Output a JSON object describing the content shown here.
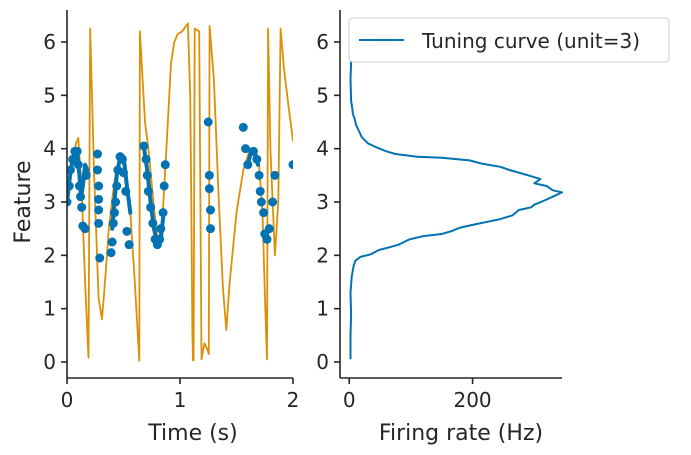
{
  "colors": {
    "blue": "#0173b2",
    "orange": "#de8f05",
    "axis": "#262626"
  },
  "chart_data": [
    {
      "type": "scatter",
      "xlabel": "Time (s)",
      "ylabel": "Feature",
      "xlim": [
        0,
        2
      ],
      "ylim": [
        -0.3,
        6.6
      ],
      "xticks": [
        "0",
        "1",
        "2"
      ],
      "yticks": [
        "0",
        "1",
        "2",
        "3",
        "4",
        "5",
        "6"
      ],
      "grid": false,
      "series": [
        {
          "kind": "line",
          "color": "#de8f05",
          "points": [
            [
              0.0,
              3.0
            ],
            [
              0.04,
              3.6
            ],
            [
              0.08,
              4.1
            ],
            [
              0.1,
              4.2
            ],
            [
              0.13,
              3.2
            ],
            [
              0.16,
              1.5
            ],
            [
              0.19,
              0.08
            ],
            [
              0.205,
              6.25
            ],
            [
              0.24,
              3.5
            ],
            [
              0.28,
              1.2
            ],
            [
              0.31,
              0.8
            ],
            [
              0.34,
              1.6
            ],
            [
              0.37,
              2.5
            ],
            [
              0.42,
              3.4
            ],
            [
              0.47,
              3.85
            ],
            [
              0.52,
              3.7
            ],
            [
              0.56,
              2.8
            ],
            [
              0.6,
              1.5
            ],
            [
              0.64,
              0.02
            ],
            [
              0.645,
              6.2
            ],
            [
              0.69,
              4.5
            ],
            [
              0.72,
              4.0
            ],
            [
              0.76,
              3.1
            ],
            [
              0.8,
              2.3
            ],
            [
              0.84,
              2.5
            ],
            [
              0.88,
              4.0
            ],
            [
              0.92,
              5.6
            ],
            [
              0.95,
              6.0
            ],
            [
              0.98,
              6.15
            ],
            [
              1.02,
              6.2
            ],
            [
              1.07,
              6.35
            ],
            [
              1.09,
              5.0
            ],
            [
              1.1,
              3.0
            ],
            [
              1.11,
              0.5
            ],
            [
              1.115,
              0.03
            ],
            [
              1.12,
              0.03
            ],
            [
              1.13,
              6.25
            ],
            [
              1.17,
              6.2
            ],
            [
              1.19,
              0.05
            ],
            [
              1.215,
              0.35
            ],
            [
              1.24,
              0.25
            ],
            [
              1.255,
              0.15
            ],
            [
              1.262,
              6.3
            ],
            [
              1.3,
              5.3
            ],
            [
              1.34,
              3.2
            ],
            [
              1.38,
              1.4
            ],
            [
              1.41,
              0.6
            ],
            [
              1.44,
              1.5
            ],
            [
              1.5,
              2.8
            ],
            [
              1.56,
              3.6
            ],
            [
              1.62,
              4.0
            ],
            [
              1.66,
              4.0
            ],
            [
              1.7,
              3.7
            ],
            [
              1.73,
              2.8
            ],
            [
              1.755,
              1.0
            ],
            [
              1.77,
              0.05
            ],
            [
              1.78,
              6.25
            ],
            [
              1.8,
              4.0
            ],
            [
              1.84,
              2.0
            ],
            [
              1.87,
              3.0
            ],
            [
              1.89,
              6.25
            ],
            [
              1.92,
              5.5
            ],
            [
              1.96,
              4.8
            ],
            [
              2.0,
              4.15
            ]
          ]
        },
        {
          "kind": "line",
          "color": "#0173b2",
          "points": [
            [
              0.0,
              3.0
            ],
            [
              0.03,
              3.55
            ],
            [
              0.06,
              3.9
            ],
            [
              0.09,
              3.95
            ],
            [
              0.11,
              3.5
            ],
            [
              0.125,
              3.1
            ],
            [
              0.14,
              3.3
            ],
            [
              0.16,
              3.7
            ],
            [
              0.18,
              3.6
            ]
          ]
        },
        {
          "kind": "line",
          "color": "#0173b2",
          "points": [
            [
              0.4,
              2.5
            ],
            [
              0.42,
              3.0
            ],
            [
              0.44,
              3.5
            ],
            [
              0.47,
              3.85
            ],
            [
              0.5,
              3.85
            ],
            [
              0.53,
              3.3
            ],
            [
              0.56,
              2.8
            ]
          ]
        },
        {
          "kind": "line",
          "color": "#0173b2",
          "points": [
            [
              0.68,
              4.05
            ],
            [
              0.71,
              3.6
            ],
            [
              0.74,
              3.0
            ],
            [
              0.77,
              2.5
            ],
            [
              0.8,
              2.2
            ],
            [
              0.83,
              2.3
            ],
            [
              0.85,
              2.7
            ]
          ]
        },
        {
          "kind": "line",
          "color": "#0173b2",
          "points": [
            [
              1.6,
              3.7
            ],
            [
              1.63,
              3.95
            ],
            [
              1.66,
              3.95
            ],
            [
              1.69,
              3.7
            ]
          ]
        },
        {
          "kind": "scatter",
          "color": "#0173b2",
          "points": [
            [
              0.0,
              3.0
            ],
            [
              0.02,
              3.3
            ],
            [
              0.03,
              3.6
            ],
            [
              0.05,
              3.8
            ],
            [
              0.07,
              3.95
            ],
            [
              0.09,
              3.95
            ],
            [
              0.1,
              3.7
            ],
            [
              0.11,
              3.3
            ],
            [
              0.12,
              3.1
            ],
            [
              0.13,
              2.9
            ],
            [
              0.14,
              2.55
            ],
            [
              0.16,
              2.5
            ],
            [
              0.17,
              3.5
            ],
            [
              0.27,
              3.9
            ],
            [
              0.27,
              3.6
            ],
            [
              0.28,
              3.3
            ],
            [
              0.28,
              3.05
            ],
            [
              0.28,
              2.85
            ],
            [
              0.28,
              2.6
            ],
            [
              0.29,
              1.95
            ],
            [
              0.39,
              2.05
            ],
            [
              0.4,
              2.25
            ],
            [
              0.41,
              2.6
            ],
            [
              0.42,
              2.8
            ],
            [
              0.43,
              3.0
            ],
            [
              0.44,
              3.3
            ],
            [
              0.45,
              3.6
            ],
            [
              0.47,
              3.85
            ],
            [
              0.49,
              3.8
            ],
            [
              0.5,
              3.55
            ],
            [
              0.52,
              3.2
            ],
            [
              0.53,
              2.45
            ],
            [
              0.55,
              2.2
            ],
            [
              0.68,
              4.05
            ],
            [
              0.7,
              3.8
            ],
            [
              0.71,
              3.5
            ],
            [
              0.72,
              3.2
            ],
            [
              0.74,
              2.9
            ],
            [
              0.76,
              2.6
            ],
            [
              0.78,
              2.3
            ],
            [
              0.8,
              2.2
            ],
            [
              0.82,
              2.3
            ],
            [
              0.83,
              2.5
            ],
            [
              0.85,
              2.8
            ],
            [
              0.86,
              3.3
            ],
            [
              0.87,
              3.7
            ],
            [
              1.25,
              4.5
            ],
            [
              1.26,
              3.5
            ],
            [
              1.26,
              3.25
            ],
            [
              1.27,
              2.85
            ],
            [
              1.27,
              2.5
            ],
            [
              1.56,
              4.4
            ],
            [
              1.58,
              4.0
            ],
            [
              1.6,
              3.7
            ],
            [
              1.65,
              3.95
            ],
            [
              1.68,
              3.8
            ],
            [
              1.7,
              3.5
            ],
            [
              1.71,
              3.2
            ],
            [
              1.72,
              3.0
            ],
            [
              1.74,
              2.8
            ],
            [
              1.75,
              2.4
            ],
            [
              1.77,
              2.3
            ],
            [
              1.79,
              2.5
            ],
            [
              1.82,
              3.0
            ],
            [
              1.84,
              3.5
            ],
            [
              2.0,
              3.7
            ]
          ]
        }
      ]
    },
    {
      "type": "line",
      "xlabel": "Firing rate (Hz)",
      "ylabel": "",
      "xlim": [
        -15,
        345
      ],
      "ylim": [
        -0.3,
        6.6
      ],
      "xticks": [
        "0",
        "200"
      ],
      "yticks": [
        "0",
        "1",
        "2",
        "3",
        "4",
        "5",
        "6"
      ],
      "grid": false,
      "legend": {
        "position": "top-right",
        "entries": [
          "Tuning curve (unit=3)"
        ]
      },
      "series": [
        {
          "name": "Tuning curve (unit=3)",
          "color": "#0173b2",
          "points": [
            [
              2,
              0.05
            ],
            [
              2,
              0.5
            ],
            [
              3,
              0.9
            ],
            [
              2,
              1.3
            ],
            [
              4,
              1.6
            ],
            [
              7,
              1.8
            ],
            [
              10,
              1.9
            ],
            [
              18,
              1.97
            ],
            [
              35,
              2.02
            ],
            [
              48,
              2.1
            ],
            [
              65,
              2.15
            ],
            [
              80,
              2.2
            ],
            [
              85,
              2.23
            ],
            [
              98,
              2.3
            ],
            [
              120,
              2.36
            ],
            [
              150,
              2.4
            ],
            [
              165,
              2.45
            ],
            [
              180,
              2.52
            ],
            [
              200,
              2.57
            ],
            [
              225,
              2.63
            ],
            [
              245,
              2.68
            ],
            [
              265,
              2.75
            ],
            [
              275,
              2.85
            ],
            [
              295,
              2.9
            ],
            [
              300,
              2.95
            ],
            [
              315,
              3.02
            ],
            [
              330,
              3.1
            ],
            [
              345,
              3.18
            ],
            [
              330,
              3.22
            ],
            [
              320,
              3.3
            ],
            [
              300,
              3.35
            ],
            [
              310,
              3.43
            ],
            [
              290,
              3.5
            ],
            [
              260,
              3.6
            ],
            [
              245,
              3.66
            ],
            [
              215,
              3.72
            ],
            [
              195,
              3.78
            ],
            [
              150,
              3.83
            ],
            [
              110,
              3.85
            ],
            [
              75,
              3.9
            ],
            [
              60,
              3.95
            ],
            [
              45,
              4.02
            ],
            [
              30,
              4.1
            ],
            [
              20,
              4.22
            ],
            [
              15,
              4.35
            ],
            [
              11,
              4.45
            ],
            [
              9,
              4.55
            ],
            [
              6,
              4.65
            ],
            [
              5,
              4.75
            ],
            [
              3,
              4.9
            ],
            [
              2,
              5.3
            ],
            [
              3,
              5.6
            ],
            [
              2,
              6.0
            ],
            [
              2,
              6.25
            ]
          ]
        }
      ]
    }
  ]
}
